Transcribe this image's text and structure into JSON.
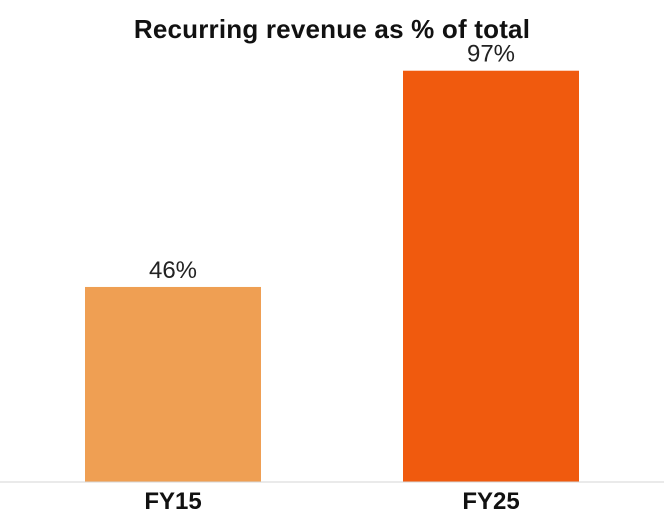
{
  "chart_data": {
    "type": "bar",
    "title": "Recurring revenue as % of total",
    "categories": [
      "FY15",
      "FY25"
    ],
    "values": [
      46,
      97
    ],
    "value_labels": [
      "46%",
      "97%"
    ],
    "colors": [
      "#EF9F53",
      "#F05A0E"
    ],
    "xlabel": "",
    "ylabel": "",
    "ylim": [
      0,
      100
    ],
    "grid": false,
    "legend": "none"
  }
}
